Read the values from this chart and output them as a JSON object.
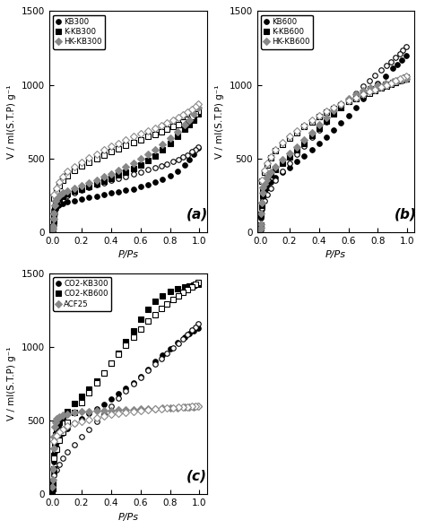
{
  "ylabel": "V / ml(S.T.P) g⁻¹",
  "xlabel": "P/Ps",
  "ylim": [
    0,
    1500
  ],
  "xlim": [
    -0.02,
    1.05
  ],
  "yticks": [
    0,
    500,
    1000,
    1500
  ],
  "xticks": [
    0.0,
    0.2,
    0.4,
    0.6,
    0.8,
    1.0
  ],
  "panel_a": {
    "label": "(a)",
    "series": [
      {
        "name": "KB300",
        "marker": "o",
        "color": "#000000",
        "adsorption_x": [
          0.001,
          0.003,
          0.005,
          0.008,
          0.01,
          0.015,
          0.02,
          0.03,
          0.04,
          0.05,
          0.07,
          0.1,
          0.15,
          0.2,
          0.25,
          0.3,
          0.35,
          0.4,
          0.45,
          0.5,
          0.55,
          0.6,
          0.65,
          0.7,
          0.75,
          0.8,
          0.85,
          0.9,
          0.93,
          0.96,
          0.99
        ],
        "adsorption_y": [
          5,
          10,
          20,
          50,
          80,
          130,
          160,
          175,
          185,
          190,
          195,
          205,
          215,
          225,
          235,
          245,
          255,
          265,
          275,
          285,
          295,
          310,
          325,
          340,
          360,
          385,
          415,
          455,
          490,
          530,
          570
        ],
        "desorption_x": [
          0.99,
          0.97,
          0.95,
          0.92,
          0.89,
          0.86,
          0.82,
          0.78,
          0.74,
          0.7,
          0.65,
          0.6,
          0.55,
          0.5,
          0.45,
          0.4,
          0.35,
          0.3,
          0.25,
          0.2,
          0.15,
          0.1,
          0.07,
          0.05,
          0.03,
          0.01
        ],
        "desorption_y": [
          580,
          560,
          545,
          525,
          510,
          495,
          480,
          465,
          450,
          440,
          425,
          410,
          395,
          380,
          365,
          350,
          335,
          320,
          305,
          288,
          268,
          248,
          228,
          210,
          190,
          155
        ]
      },
      {
        "name": "K-KB300",
        "marker": "s",
        "color": "#000000",
        "adsorption_x": [
          0.001,
          0.003,
          0.005,
          0.008,
          0.01,
          0.015,
          0.02,
          0.03,
          0.04,
          0.05,
          0.07,
          0.1,
          0.15,
          0.2,
          0.25,
          0.3,
          0.35,
          0.4,
          0.45,
          0.5,
          0.55,
          0.6,
          0.65,
          0.7,
          0.75,
          0.8,
          0.85,
          0.9,
          0.93,
          0.96,
          0.99
        ],
        "adsorption_y": [
          10,
          20,
          35,
          80,
          120,
          170,
          200,
          215,
          225,
          232,
          245,
          260,
          278,
          295,
          312,
          330,
          348,
          368,
          388,
          410,
          432,
          458,
          488,
          520,
          558,
          600,
          648,
          700,
          730,
          760,
          800
        ],
        "desorption_x": [
          0.99,
          0.97,
          0.95,
          0.92,
          0.89,
          0.86,
          0.82,
          0.78,
          0.74,
          0.7,
          0.65,
          0.6,
          0.55,
          0.5,
          0.45,
          0.4,
          0.35,
          0.3,
          0.25,
          0.2,
          0.15,
          0.1,
          0.07,
          0.05,
          0.03,
          0.01
        ],
        "desorption_y": [
          820,
          800,
          782,
          765,
          748,
          732,
          715,
          700,
          682,
          665,
          648,
          628,
          608,
          588,
          568,
          548,
          525,
          500,
          475,
          448,
          418,
          385,
          350,
          318,
          280,
          230
        ]
      },
      {
        "name": "HK-KB300",
        "marker": "D",
        "color": "#888888",
        "adsorption_x": [
          0.001,
          0.003,
          0.005,
          0.008,
          0.01,
          0.015,
          0.02,
          0.03,
          0.04,
          0.05,
          0.07,
          0.1,
          0.15,
          0.2,
          0.25,
          0.3,
          0.35,
          0.4,
          0.45,
          0.5,
          0.55,
          0.6,
          0.65,
          0.7,
          0.75,
          0.8,
          0.85,
          0.9,
          0.93,
          0.96,
          0.99
        ],
        "adsorption_y": [
          12,
          25,
          40,
          90,
          130,
          180,
          215,
          230,
          242,
          250,
          265,
          280,
          300,
          318,
          335,
          355,
          375,
          398,
          420,
          445,
          470,
          498,
          528,
          562,
          598,
          638,
          680,
          730,
          762,
          800,
          845
        ],
        "desorption_x": [
          0.99,
          0.97,
          0.95,
          0.92,
          0.89,
          0.86,
          0.82,
          0.78,
          0.74,
          0.7,
          0.65,
          0.6,
          0.55,
          0.5,
          0.45,
          0.4,
          0.35,
          0.3,
          0.25,
          0.2,
          0.15,
          0.1,
          0.07,
          0.05,
          0.03,
          0.01
        ],
        "desorption_y": [
          870,
          850,
          832,
          812,
          795,
          778,
          760,
          742,
          725,
          708,
          688,
          668,
          648,
          628,
          605,
          582,
          558,
          532,
          505,
          476,
          445,
          412,
          375,
          340,
          300,
          255
        ]
      }
    ]
  },
  "panel_b": {
    "label": "(b)",
    "series": [
      {
        "name": "KB600",
        "marker": "o",
        "color": "#000000",
        "adsorption_x": [
          0.001,
          0.003,
          0.005,
          0.008,
          0.01,
          0.015,
          0.02,
          0.03,
          0.04,
          0.05,
          0.07,
          0.1,
          0.15,
          0.2,
          0.25,
          0.3,
          0.35,
          0.4,
          0.45,
          0.5,
          0.55,
          0.6,
          0.65,
          0.7,
          0.75,
          0.8,
          0.85,
          0.9,
          0.93,
          0.96,
          0.99
        ],
        "adsorption_y": [
          10,
          20,
          40,
          100,
          160,
          220,
          260,
          280,
          300,
          315,
          340,
          370,
          405,
          440,
          478,
          518,
          558,
          600,
          645,
          692,
          740,
          792,
          848,
          908,
          960,
          1010,
          1060,
          1110,
          1140,
          1170,
          1200
        ],
        "desorption_x": [
          0.99,
          0.97,
          0.95,
          0.92,
          0.89,
          0.86,
          0.82,
          0.78,
          0.74,
          0.7,
          0.65,
          0.6,
          0.55,
          0.5,
          0.45,
          0.4,
          0.35,
          0.3,
          0.25,
          0.2,
          0.15,
          0.1,
          0.07,
          0.05,
          0.03,
          0.01
        ],
        "desorption_y": [
          1260,
          1235,
          1212,
          1185,
          1158,
          1130,
          1100,
          1065,
          1028,
          990,
          945,
          898,
          850,
          800,
          748,
          695,
          642,
          585,
          528,
          470,
          412,
          355,
          298,
          258,
          215,
          165
        ]
      },
      {
        "name": "K-KB600",
        "marker": "s",
        "color": "#000000",
        "adsorption_x": [
          0.001,
          0.003,
          0.005,
          0.008,
          0.01,
          0.015,
          0.02,
          0.03,
          0.04,
          0.05,
          0.07,
          0.1,
          0.15,
          0.2,
          0.25,
          0.3,
          0.35,
          0.4,
          0.45,
          0.5,
          0.55,
          0.6,
          0.65,
          0.7,
          0.75,
          0.8,
          0.85,
          0.9,
          0.93,
          0.96,
          0.99
        ],
        "adsorption_y": [
          15,
          28,
          50,
          120,
          185,
          250,
          290,
          315,
          340,
          360,
          390,
          425,
          468,
          512,
          558,
          605,
          655,
          705,
          755,
          805,
          848,
          888,
          922,
          950,
          972,
          990,
          1005,
          1018,
          1026,
          1032,
          1038
        ],
        "desorption_x": [
          0.99,
          0.97,
          0.95,
          0.92,
          0.89,
          0.86,
          0.82,
          0.78,
          0.74,
          0.7,
          0.65,
          0.6,
          0.55,
          0.5,
          0.45,
          0.4,
          0.35,
          0.3,
          0.25,
          0.2,
          0.15,
          0.1,
          0.07,
          0.05,
          0.03,
          0.01
        ],
        "desorption_y": [
          1050,
          1040,
          1030,
          1018,
          1005,
          992,
          978,
          962,
          945,
          928,
          908,
          888,
          865,
          840,
          812,
          782,
          750,
          715,
          678,
          640,
          598,
          552,
          502,
          458,
          408,
          345
        ]
      },
      {
        "name": "HK-KB600",
        "marker": "D",
        "color": "#888888",
        "adsorption_x": [
          0.001,
          0.003,
          0.005,
          0.008,
          0.01,
          0.015,
          0.02,
          0.03,
          0.04,
          0.05,
          0.07,
          0.1,
          0.15,
          0.2,
          0.25,
          0.3,
          0.35,
          0.4,
          0.45,
          0.5,
          0.55,
          0.6,
          0.65,
          0.7,
          0.75,
          0.8,
          0.85,
          0.9,
          0.93,
          0.96,
          0.99
        ],
        "adsorption_y": [
          18,
          32,
          55,
          130,
          198,
          265,
          305,
          330,
          355,
          378,
          408,
          445,
          490,
          535,
          580,
          628,
          678,
          728,
          778,
          825,
          868,
          905,
          938,
          962,
          982,
          998,
          1010,
          1022,
          1028,
          1035,
          1042
        ],
        "desorption_x": [
          0.99,
          0.97,
          0.95,
          0.92,
          0.89,
          0.86,
          0.82,
          0.78,
          0.74,
          0.7,
          0.65,
          0.6,
          0.55,
          0.5,
          0.45,
          0.4,
          0.35,
          0.3,
          0.25,
          0.2,
          0.15,
          0.1,
          0.07,
          0.05,
          0.03,
          0.01
        ],
        "desorption_y": [
          1058,
          1048,
          1038,
          1026,
          1012,
          998,
          984,
          968,
          952,
          935,
          915,
          895,
          872,
          848,
          820,
          790,
          758,
          722,
          685,
          648,
          608,
          562,
          512,
          468,
          418,
          352
        ]
      }
    ]
  },
  "panel_c": {
    "label": "(c)",
    "series": [
      {
        "name": "CO2-KB300",
        "marker": "o",
        "color": "#000000",
        "adsorption_x": [
          0.001,
          0.003,
          0.005,
          0.008,
          0.01,
          0.015,
          0.02,
          0.03,
          0.04,
          0.05,
          0.07,
          0.1,
          0.15,
          0.2,
          0.25,
          0.3,
          0.35,
          0.4,
          0.45,
          0.5,
          0.55,
          0.6,
          0.65,
          0.7,
          0.75,
          0.8,
          0.85,
          0.9,
          0.93,
          0.96,
          0.99
        ],
        "adsorption_y": [
          15,
          30,
          55,
          140,
          220,
          290,
          330,
          355,
          375,
          390,
          415,
          445,
          480,
          515,
          548,
          580,
          612,
          645,
          680,
          718,
          758,
          800,
          848,
          900,
          945,
          988,
          1028,
          1068,
          1088,
          1108,
          1128
        ],
        "desorption_x": [
          0.99,
          0.97,
          0.95,
          0.92,
          0.89,
          0.86,
          0.82,
          0.78,
          0.74,
          0.7,
          0.65,
          0.6,
          0.55,
          0.5,
          0.45,
          0.4,
          0.35,
          0.3,
          0.25,
          0.2,
          0.15,
          0.1,
          0.07,
          0.05,
          0.03,
          0.01
        ],
        "desorption_y": [
          1155,
          1135,
          1112,
          1085,
          1055,
          1025,
          992,
          958,
          920,
          882,
          840,
          795,
          748,
          700,
          650,
          598,
          545,
          492,
          440,
          388,
          338,
          288,
          242,
          205,
          168,
          128
        ]
      },
      {
        "name": "CO2-KB600",
        "marker": "s",
        "color": "#000000",
        "adsorption_x": [
          0.001,
          0.003,
          0.005,
          0.008,
          0.01,
          0.015,
          0.02,
          0.03,
          0.04,
          0.05,
          0.07,
          0.1,
          0.15,
          0.2,
          0.25,
          0.3,
          0.35,
          0.4,
          0.45,
          0.5,
          0.55,
          0.6,
          0.65,
          0.7,
          0.75,
          0.8,
          0.85,
          0.9,
          0.93,
          0.96,
          0.99
        ],
        "adsorption_y": [
          20,
          40,
          70,
          170,
          265,
          350,
          400,
          435,
          462,
          485,
          520,
          562,
          615,
          665,
          715,
          768,
          825,
          888,
          958,
          1035,
          1110,
          1185,
          1255,
          1310,
          1348,
          1375,
          1392,
          1405,
          1412,
          1418,
          1425
        ],
        "desorption_x": [
          0.99,
          0.97,
          0.95,
          0.92,
          0.89,
          0.86,
          0.82,
          0.78,
          0.74,
          0.7,
          0.65,
          0.6,
          0.55,
          0.5,
          0.45,
          0.4,
          0.35,
          0.3,
          0.25,
          0.2,
          0.15,
          0.1,
          0.07,
          0.05,
          0.03,
          0.01
        ],
        "desorption_y": [
          1438,
          1422,
          1408,
          1390,
          1370,
          1348,
          1322,
          1292,
          1258,
          1218,
          1172,
          1122,
          1068,
          1010,
          950,
          888,
          822,
          755,
          688,
          620,
          552,
          485,
          422,
          368,
          308,
          242
        ]
      },
      {
        "name": "ACF25",
        "marker": "D",
        "color": "#888888",
        "adsorption_x": [
          0.001,
          0.003,
          0.005,
          0.008,
          0.01,
          0.015,
          0.02,
          0.03,
          0.04,
          0.05,
          0.07,
          0.1,
          0.15,
          0.2,
          0.25,
          0.3,
          0.35,
          0.4,
          0.45,
          0.5,
          0.55,
          0.6,
          0.65,
          0.7,
          0.75,
          0.8,
          0.85,
          0.9,
          0.93,
          0.96,
          0.99
        ],
        "adsorption_y": [
          50,
          100,
          170,
          310,
          390,
          460,
          490,
          510,
          520,
          525,
          535,
          545,
          552,
          558,
          562,
          565,
          568,
          570,
          572,
          574,
          576,
          578,
          580,
          582,
          584,
          586,
          588,
          590,
          592,
          594,
          596
        ],
        "desorption_x": [
          0.99,
          0.97,
          0.95,
          0.92,
          0.89,
          0.86,
          0.82,
          0.78,
          0.74,
          0.7,
          0.65,
          0.6,
          0.55,
          0.5,
          0.45,
          0.4,
          0.35,
          0.3,
          0.25,
          0.2,
          0.15,
          0.1,
          0.07,
          0.05,
          0.03,
          0.01
        ],
        "desorption_y": [
          600,
          598,
          596,
          594,
          592,
          590,
          588,
          585,
          582,
          578,
          574,
          568,
          562,
          556,
          548,
          540,
          530,
          520,
          508,
          495,
          480,
          462,
          442,
          422,
          398,
          362
        ]
      }
    ]
  }
}
